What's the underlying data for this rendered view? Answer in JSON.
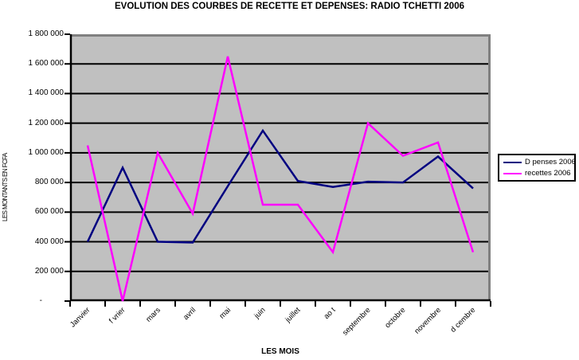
{
  "chart_data": {
    "type": "line",
    "title": "EVOLUTION DES COURBES DE RECETTE ET DEPENSES: RADIO TCHETTI 2006",
    "xlabel": "LES MOIS",
    "ylabel": "LES MONTANTS EN FCFA",
    "ylim": [
      0,
      1800000
    ],
    "ytick_interval": 200000,
    "ytick_labels": [
      "1 800 000",
      "1 600 000",
      "1 400 000",
      "1 200 000",
      "1 000 000",
      "800 000",
      "600 000",
      "400 000",
      "200 000",
      "-"
    ],
    "grid": true,
    "legend_position": "right",
    "plot_bg_color": "#C0C0C0",
    "grid_color": "#000000",
    "border_color": "#808080",
    "categories": [
      "Janvier",
      "f vrier",
      "mars",
      "avril",
      "mai",
      "juin",
      "juillet",
      "ao t",
      "septembre",
      "octobre",
      "novembre",
      "d cembre"
    ],
    "series": [
      {
        "id": "depenses",
        "name": "D penses 2006",
        "color": "#000080",
        "values": [
          400000,
          900000,
          400000,
          395000,
          775000,
          1150000,
          810000,
          770000,
          805000,
          800000,
          975000,
          760000
        ]
      },
      {
        "id": "recettes",
        "name": "recettes 2006",
        "color": "#FF00FF",
        "values": [
          1050000,
          0,
          1000000,
          590000,
          1650000,
          650000,
          650000,
          330000,
          1200000,
          980000,
          1070000,
          330000
        ]
      }
    ]
  }
}
